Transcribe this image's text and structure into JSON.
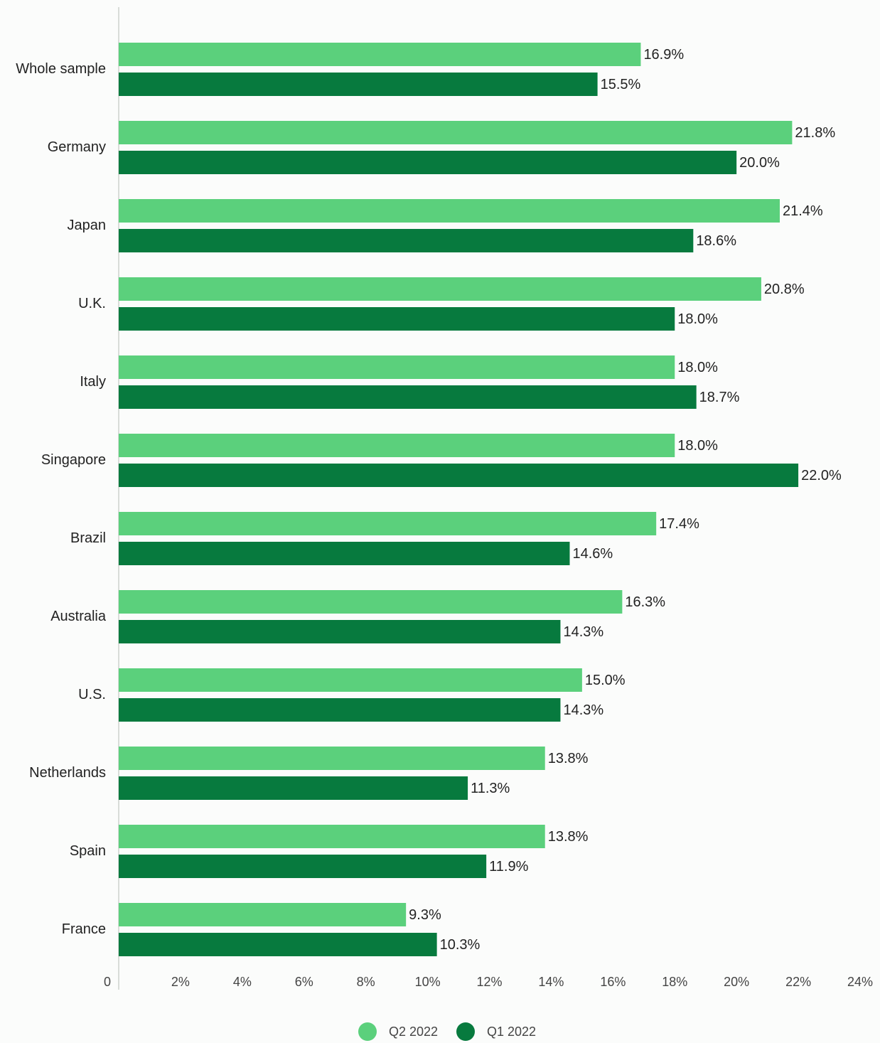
{
  "chart_data": {
    "type": "bar",
    "orientation": "horizontal",
    "categories": [
      "Whole sample",
      "Germany",
      "Japan",
      "U.K.",
      "Italy",
      "Singapore",
      "Brazil",
      "Australia",
      "U.S.",
      "Netherlands",
      "Spain",
      "France"
    ],
    "series": [
      {
        "name": "Q2 2022",
        "color": "#5bd07c",
        "values": [
          16.9,
          21.8,
          21.4,
          20.8,
          18.0,
          18.0,
          17.4,
          16.3,
          15.0,
          13.8,
          13.8,
          9.3
        ],
        "value_labels": [
          "16.9%",
          "21.8%",
          "21.4%",
          "20.8%",
          "18.0%",
          "18.0%",
          "17.4%",
          "16.3%",
          "15.0%",
          "13.8%",
          "13.8%",
          "9.3%"
        ]
      },
      {
        "name": "Q1 2022",
        "color": "#077a3e",
        "values": [
          15.5,
          20.0,
          18.6,
          18.0,
          18.7,
          22.0,
          14.6,
          14.3,
          14.3,
          11.3,
          11.9,
          10.3
        ],
        "value_labels": [
          "15.5%",
          "20.0%",
          "18.6%",
          "18.0%",
          "18.7%",
          "22.0%",
          "14.6%",
          "14.3%",
          "14.3%",
          "11.3%",
          "11.9%",
          "10.3%"
        ]
      }
    ],
    "xlim": [
      0,
      24
    ],
    "xticks": [
      0,
      {
        "value": 2,
        "label": "2%"
      },
      {
        "value": 4,
        "label": "4%"
      },
      {
        "value": 6,
        "label": "6%"
      },
      {
        "value": 8,
        "label": "8%"
      },
      {
        "value": 10,
        "label": "10%"
      },
      {
        "value": 12,
        "label": "12%"
      },
      {
        "value": 14,
        "label": "14%"
      },
      {
        "value": 16,
        "label": "16%"
      },
      {
        "value": 18,
        "label": "18%"
      },
      {
        "value": 20,
        "label": "20%"
      },
      {
        "value": 22,
        "label": "22%"
      },
      {
        "value": 24,
        "label": "24%"
      }
    ]
  }
}
